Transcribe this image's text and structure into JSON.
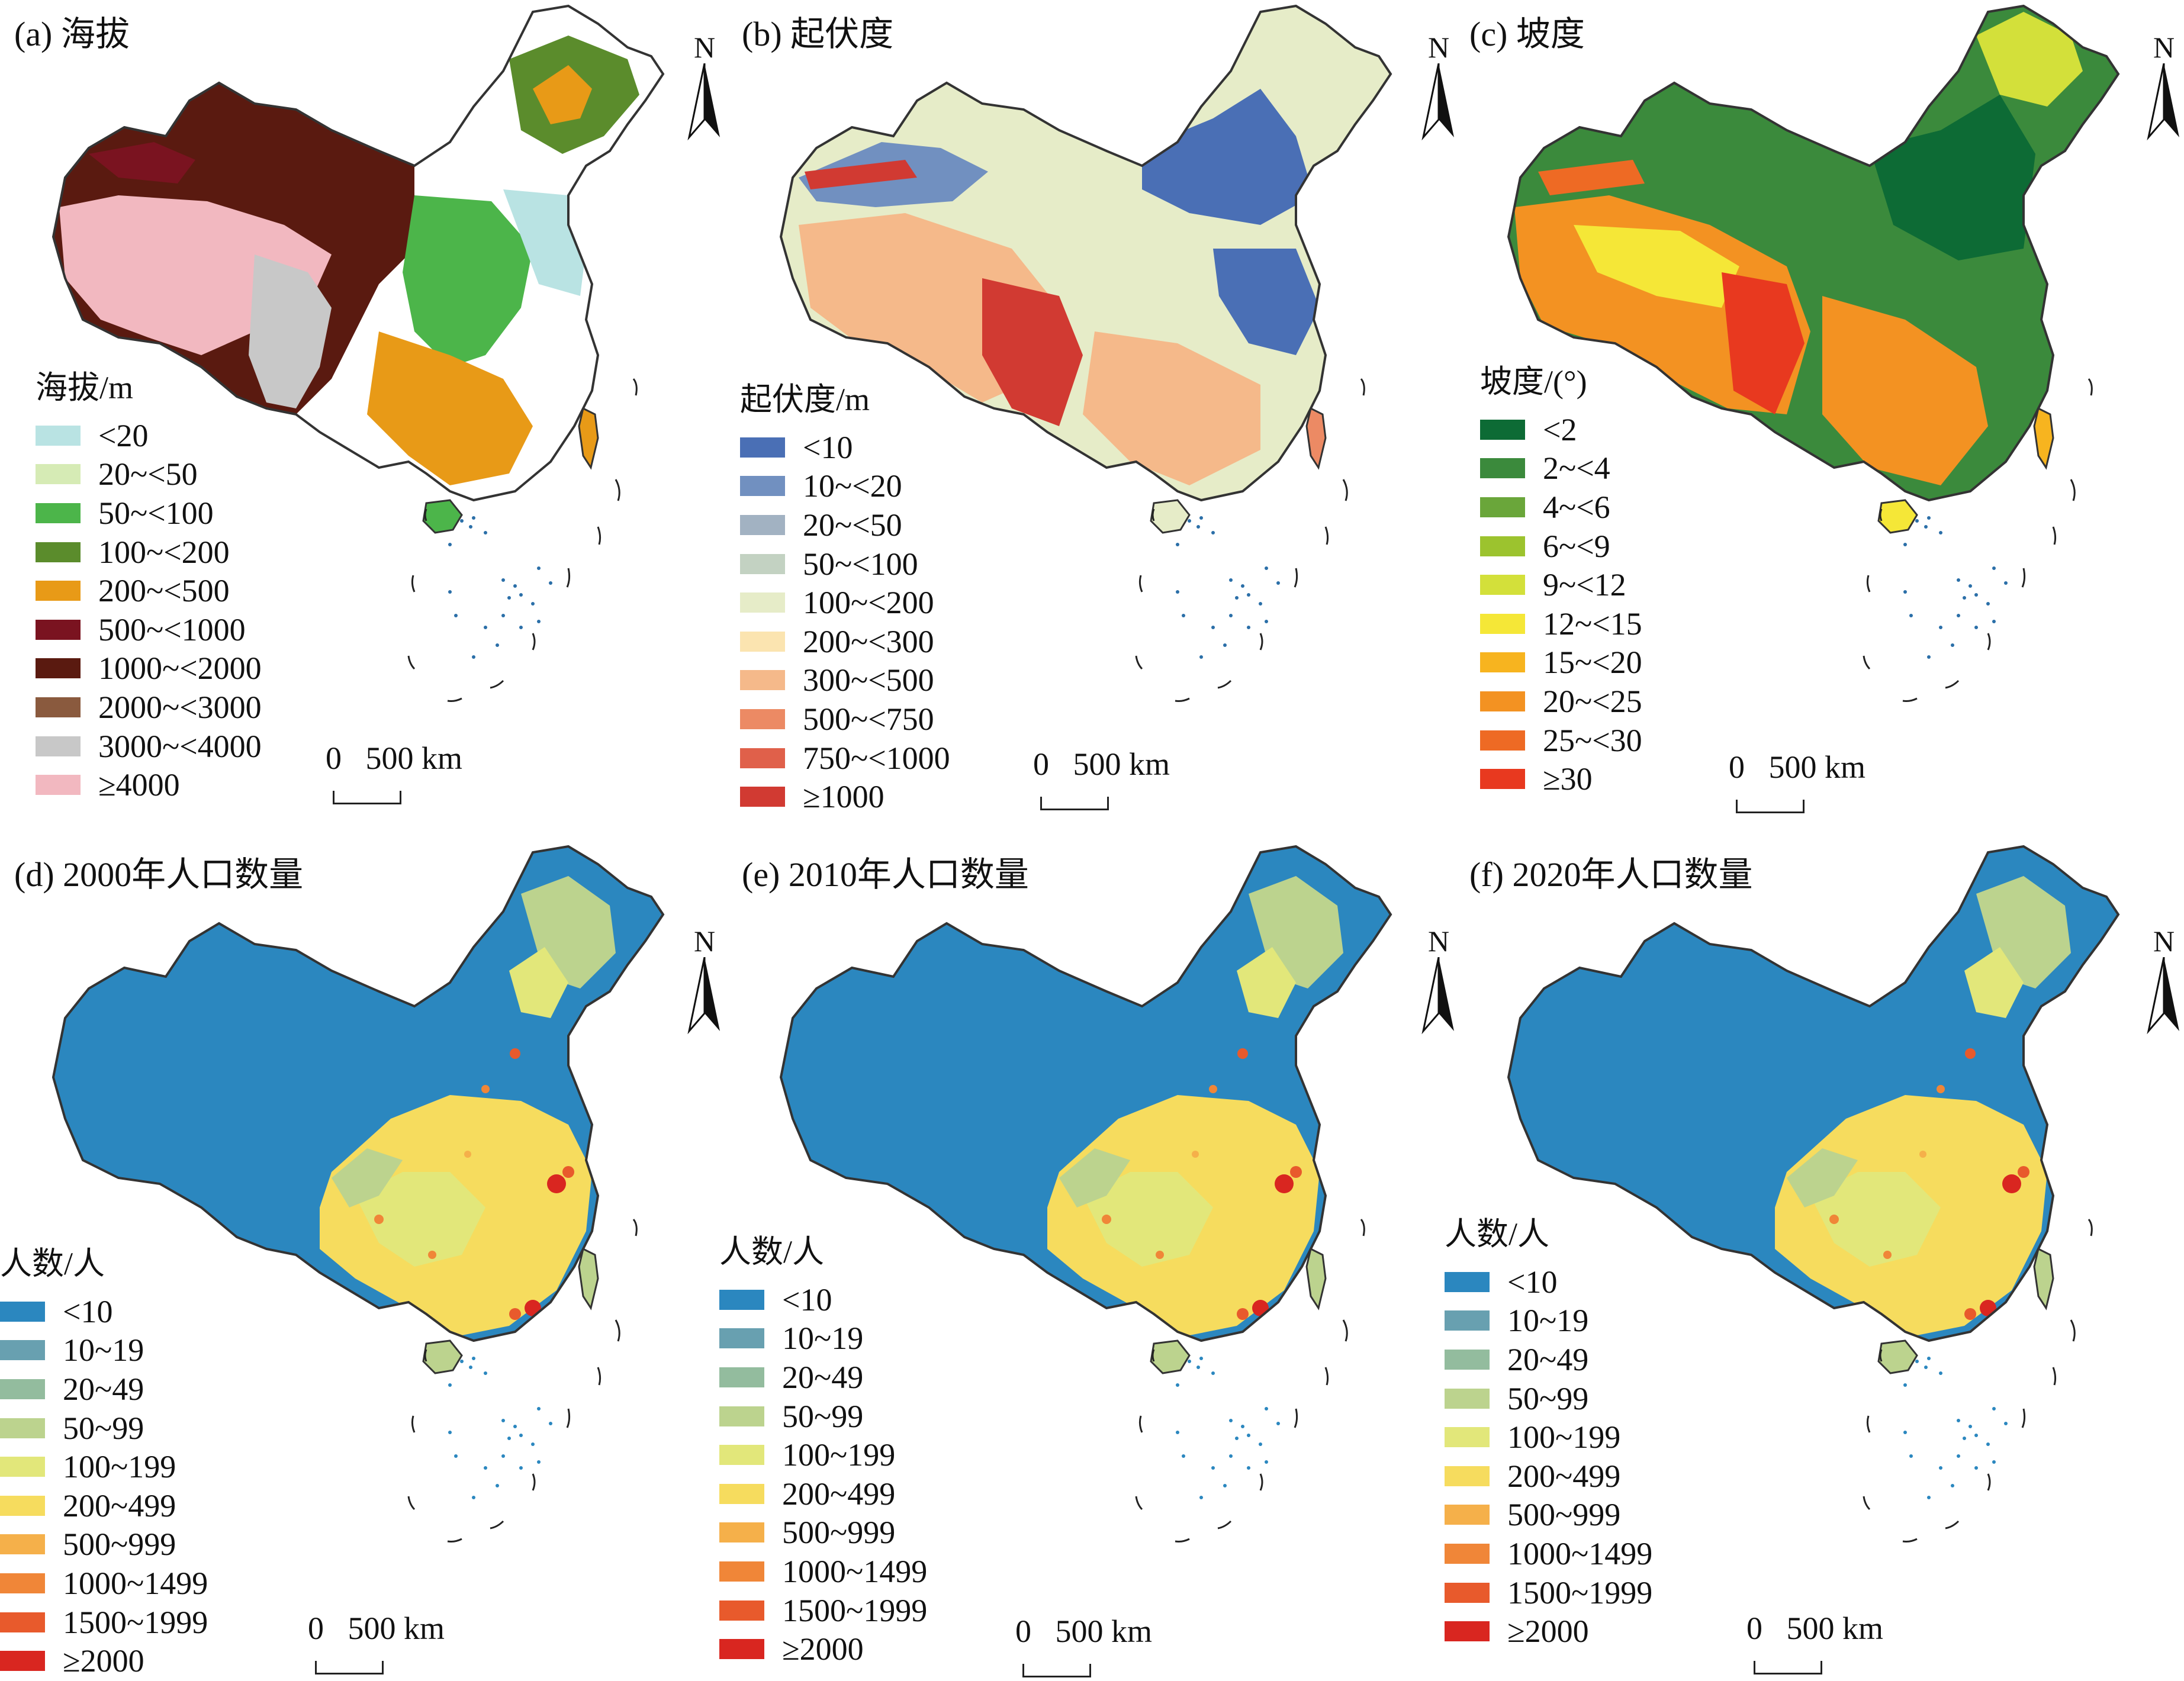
{
  "panels": [
    {
      "id": "a",
      "title": "(a) 海拔",
      "legend_title": "海拔/m",
      "north": "N",
      "scale": "0   500 km",
      "legend": [
        {
          "label": "<20",
          "color": "#b9e3e3"
        },
        {
          "label": "20~<50",
          "color": "#d6ebb5"
        },
        {
          "label": "50~<100",
          "color": "#4cb54a"
        },
        {
          "label": "100~<200",
          "color": "#5b8c2c"
        },
        {
          "label": "200~<500",
          "color": "#e89a17"
        },
        {
          "label": "500~<1000",
          "color": "#7a1320"
        },
        {
          "label": "1000~<2000",
          "color": "#5a1a10"
        },
        {
          "label": "2000~<3000",
          "color": "#8a5a3e"
        },
        {
          "label": "3000~<4000",
          "color": "#c8c8c8"
        },
        {
          "label": "≥4000",
          "color": "#f2b8c0"
        }
      ]
    },
    {
      "id": "b",
      "title": "(b) 起伏度",
      "legend_title": "起伏度/m",
      "north": "N",
      "scale": "0   500 km",
      "legend": [
        {
          "label": "<10",
          "color": "#4a6fb5"
        },
        {
          "label": "10~<20",
          "color": "#7190c0"
        },
        {
          "label": "20~<50",
          "color": "#a2b2c2"
        },
        {
          "label": "50~<100",
          "color": "#c3d2c2"
        },
        {
          "label": "100~<200",
          "color": "#e6ecc8"
        },
        {
          "label": "200~<300",
          "color": "#fbe4b0"
        },
        {
          "label": "300~<500",
          "color": "#f5b98a"
        },
        {
          "label": "500~<750",
          "color": "#ec8a64"
        },
        {
          "label": "750~<1000",
          "color": "#e0604a"
        },
        {
          "label": "≥1000",
          "color": "#d13a32"
        }
      ]
    },
    {
      "id": "c",
      "title": "(c) 坡度",
      "legend_title": "坡度/(°)",
      "north": "N",
      "scale": "0   500 km",
      "legend": [
        {
          "label": "<2",
          "color": "#0d6b35"
        },
        {
          "label": "2~<4",
          "color": "#3b8a3c"
        },
        {
          "label": "4~<6",
          "color": "#6aa63a"
        },
        {
          "label": "6~<9",
          "color": "#9cc32e"
        },
        {
          "label": "9~<12",
          "color": "#d3e03a"
        },
        {
          "label": "12~<15",
          "color": "#f5e737"
        },
        {
          "label": "15~<20",
          "color": "#f7b41f"
        },
        {
          "label": "20~<25",
          "color": "#f39222"
        },
        {
          "label": "25~<30",
          "color": "#ee6a24"
        },
        {
          "label": "≥30",
          "color": "#e8391f"
        }
      ]
    },
    {
      "id": "d",
      "title": "(d) 2000年人口数量",
      "legend_title": "人数/人",
      "north": "N",
      "scale": "0   500 km",
      "legend": [
        {
          "label": "<10",
          "color": "#2b87bf"
        },
        {
          "label": "10~19",
          "color": "#68a0b0"
        },
        {
          "label": "20~49",
          "color": "#93bc9e"
        },
        {
          "label": "50~99",
          "color": "#bcd38e"
        },
        {
          "label": "100~199",
          "color": "#e2e77a"
        },
        {
          "label": "200~499",
          "color": "#f6dc5e"
        },
        {
          "label": "500~999",
          "color": "#f5b04a"
        },
        {
          "label": "1000~1499",
          "color": "#f08638"
        },
        {
          "label": "1500~1999",
          "color": "#e85a2c"
        },
        {
          "label": "≥2000",
          "color": "#d92620"
        }
      ]
    },
    {
      "id": "e",
      "title": "(e) 2010年人口数量",
      "legend_title": "人数/人",
      "north": "N",
      "scale": "0   500 km",
      "legend": [
        {
          "label": "<10",
          "color": "#2b87bf"
        },
        {
          "label": "10~19",
          "color": "#68a0b0"
        },
        {
          "label": "20~49",
          "color": "#93bc9e"
        },
        {
          "label": "50~99",
          "color": "#bcd38e"
        },
        {
          "label": "100~199",
          "color": "#e2e77a"
        },
        {
          "label": "200~499",
          "color": "#f6dc5e"
        },
        {
          "label": "500~999",
          "color": "#f5b04a"
        },
        {
          "label": "1000~1499",
          "color": "#f08638"
        },
        {
          "label": "1500~1999",
          "color": "#e85a2c"
        },
        {
          "label": "≥2000",
          "color": "#d92620"
        }
      ]
    },
    {
      "id": "f",
      "title": "(f) 2020年人口数量",
      "legend_title": "人数/人",
      "north": "N",
      "scale": "0   500 km",
      "legend": [
        {
          "label": "<10",
          "color": "#2b87bf"
        },
        {
          "label": "10~19",
          "color": "#68a0b0"
        },
        {
          "label": "20~49",
          "color": "#93bc9e"
        },
        {
          "label": "50~99",
          "color": "#bcd38e"
        },
        {
          "label": "100~199",
          "color": "#e2e77a"
        },
        {
          "label": "200~499",
          "color": "#f6dc5e"
        },
        {
          "label": "500~999",
          "color": "#f5b04a"
        },
        {
          "label": "1000~1499",
          "color": "#f08638"
        },
        {
          "label": "1500~1999",
          "color": "#e85a2c"
        },
        {
          "label": "≥2000",
          "color": "#d92620"
        }
      ]
    }
  ]
}
